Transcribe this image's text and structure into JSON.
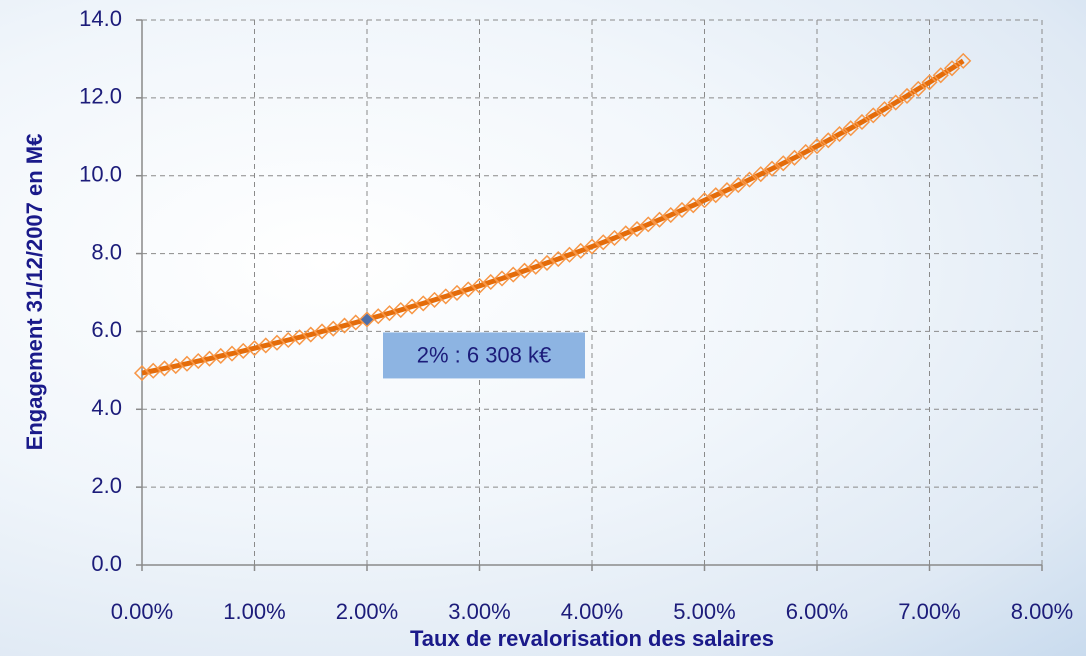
{
  "chart_data": {
    "type": "line",
    "xlabel": "Taux de revalorisation des salaires",
    "ylabel": "Engagement 31/12/2007 en M€",
    "x": [
      0,
      0.1,
      0.2,
      0.3,
      0.4,
      0.5,
      0.6,
      0.7,
      0.8,
      0.9,
      1.0,
      1.1,
      1.2,
      1.3,
      1.4,
      1.5,
      1.6,
      1.7,
      1.8,
      1.9,
      2.0,
      2.1,
      2.2,
      2.3,
      2.4,
      2.5,
      2.6,
      2.7,
      2.8,
      2.9,
      3.0,
      3.1,
      3.2,
      3.3,
      3.4,
      3.5,
      3.6,
      3.7,
      3.8,
      3.9,
      4.0,
      4.1,
      4.2,
      4.3,
      4.4,
      4.5,
      4.6,
      4.7,
      4.8,
      4.9,
      5.0,
      5.1,
      5.2,
      5.3,
      5.4,
      5.5,
      5.6,
      5.7,
      5.8,
      5.9,
      6.0,
      6.1,
      6.2,
      6.3,
      6.4,
      6.5,
      6.6,
      6.7,
      6.8,
      6.9,
      7.0,
      7.1,
      7.2,
      7.3
    ],
    "series": [
      {
        "name": "Engagement",
        "color": "#e46c0a",
        "marker_color": "#f79646",
        "values": [
          4.93,
          4.99,
          5.05,
          5.11,
          5.17,
          5.24,
          5.3,
          5.37,
          5.43,
          5.5,
          5.57,
          5.64,
          5.71,
          5.78,
          5.85,
          5.92,
          6.0,
          6.07,
          6.15,
          6.23,
          6.308,
          6.39,
          6.47,
          6.55,
          6.64,
          6.72,
          6.81,
          6.9,
          6.99,
          7.08,
          7.17,
          7.27,
          7.36,
          7.46,
          7.56,
          7.66,
          7.76,
          7.86,
          7.97,
          8.07,
          8.18,
          8.29,
          8.4,
          8.52,
          8.63,
          8.75,
          8.87,
          8.99,
          9.12,
          9.24,
          9.37,
          9.5,
          9.63,
          9.76,
          9.9,
          10.04,
          10.18,
          10.32,
          10.46,
          10.61,
          10.76,
          10.91,
          11.07,
          11.22,
          11.38,
          11.55,
          11.71,
          11.88,
          12.05,
          12.23,
          12.4,
          12.58,
          12.76,
          12.95
        ]
      }
    ],
    "annotation": {
      "text": "2% : 6 308 k€",
      "x": 2,
      "y": 6.308,
      "color": "#8db4e2",
      "point_color": "#4f6fa8"
    },
    "xlim": [
      0,
      8
    ],
    "xticks": [
      {
        "value": 0,
        "label": "0.00%"
      },
      {
        "value": 1,
        "label": "1.00%"
      },
      {
        "value": 2,
        "label": "2.00%"
      },
      {
        "value": 3,
        "label": "3.00%"
      },
      {
        "value": 4,
        "label": "4.00%"
      },
      {
        "value": 5,
        "label": "5.00%"
      },
      {
        "value": 6,
        "label": "6.00%"
      },
      {
        "value": 7,
        "label": "7.00%"
      },
      {
        "value": 8,
        "label": "8.00%"
      }
    ],
    "ylim": [
      0,
      14
    ],
    "yticks": [
      {
        "value": 0,
        "label": "0.0"
      },
      {
        "value": 2,
        "label": "2.0"
      },
      {
        "value": 4,
        "label": "4.0"
      },
      {
        "value": 6,
        "label": "6.0"
      },
      {
        "value": 8,
        "label": "8.0"
      },
      {
        "value": 10,
        "label": "10.0"
      },
      {
        "value": 12,
        "label": "12.0"
      },
      {
        "value": 14,
        "label": "14.0"
      }
    ],
    "grid": true
  }
}
